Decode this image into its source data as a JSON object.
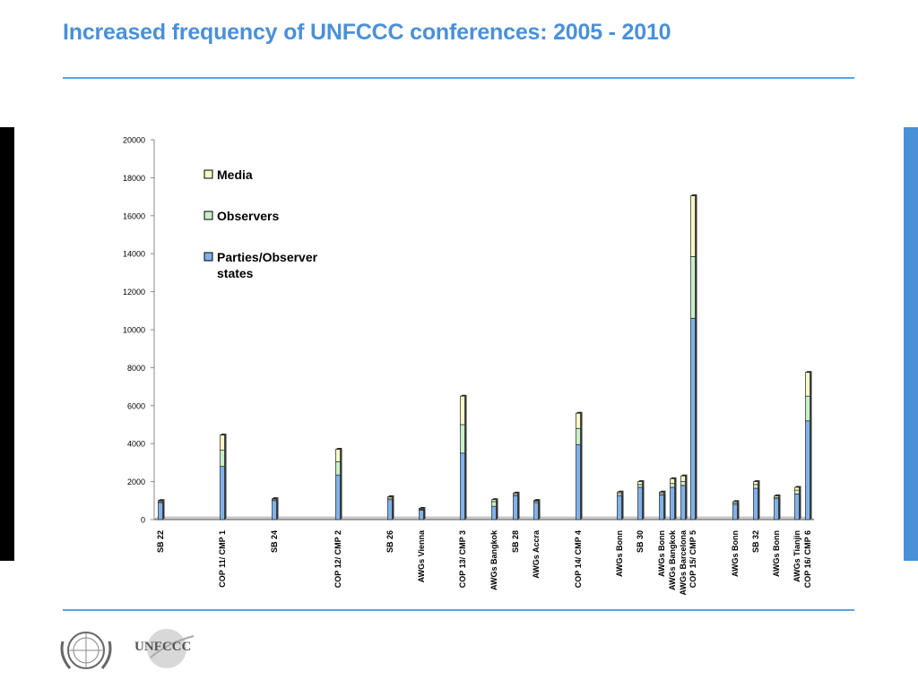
{
  "slide": {
    "title": "Increased frequency of UNFCCC conferences: 2005 - 2010"
  },
  "footer": {
    "un_logo": "un-emblem-icon",
    "unfccc_logo": "UNFCCC"
  },
  "colors": {
    "title": "#4a90d9",
    "rule": "#5ba3e0",
    "left_bar": "#000000",
    "right_bar": "#4a90d9",
    "parties": "#7fb2ea",
    "observers": "#c8f0c8",
    "media": "#f8f8c4"
  },
  "chart_data": {
    "type": "bar",
    "stacked": true,
    "title": "",
    "xlabel": "",
    "ylabel": "",
    "ylim": [
      0,
      20000
    ],
    "yticks": [
      0,
      2000,
      4000,
      6000,
      8000,
      10000,
      12000,
      14000,
      16000,
      18000,
      20000
    ],
    "legend_position": "top-left",
    "categories": [
      "SB 22",
      "COP 11/ CMP 1",
      "SB 24",
      "COP 12/ CMP 2",
      "SB 26",
      "AWGs Vienna",
      "COP 13/ CMP 3",
      "AWGs Bangkok",
      "SB 28",
      "AWGs Accra",
      "COP 14/ CMP 4",
      "AWGs Bonn",
      "SB 30",
      "AWGs Bonn",
      "AWGs Bangkok",
      "AWGs Barcelona",
      "COP 15/ CMP 5",
      "AWGs Bonn",
      "SB 32",
      "AWGs Bonn",
      "AWGs Tianjin",
      "COP 16/ CMP 6"
    ],
    "series": [
      {
        "name": "Parties/Observer states",
        "values": [
          900,
          2800,
          1000,
          2350,
          1050,
          500,
          3500,
          700,
          1250,
          900,
          3950,
          1250,
          1700,
          1300,
          1700,
          1800,
          10600,
          800,
          1650,
          1100,
          1350,
          5200
        ]
      },
      {
        "name": "Observers",
        "values": [
          50,
          850,
          50,
          700,
          80,
          50,
          1500,
          250,
          80,
          60,
          850,
          120,
          150,
          80,
          200,
          200,
          3250,
          80,
          200,
          70,
          200,
          1300
        ]
      },
      {
        "name": "Media",
        "values": [
          50,
          800,
          50,
          650,
          70,
          40,
          1500,
          100,
          70,
          50,
          800,
          80,
          150,
          70,
          250,
          300,
          3200,
          70,
          150,
          80,
          150,
          1250
        ]
      }
    ]
  }
}
